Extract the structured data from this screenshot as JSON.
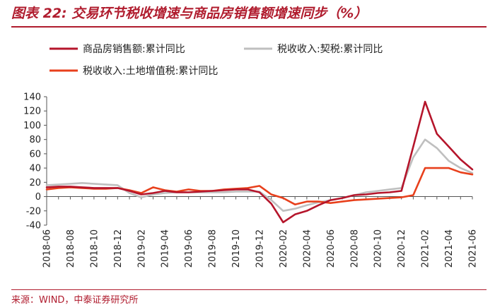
{
  "figure": {
    "title": "图表 22:  交易环节税收增速与商品房销售额增速同步（%）",
    "source": "来源：WIND，中泰证券研究所"
  },
  "colors": {
    "accent": "#b01c2e",
    "series": [
      "#b5152b",
      "#bfbfbf",
      "#e8401c"
    ]
  },
  "chart_data": {
    "type": "line",
    "ylim": [
      -40,
      140
    ],
    "yticks": [
      -40,
      -20,
      0,
      20,
      40,
      60,
      80,
      100,
      120,
      140
    ],
    "x": [
      "2018-06",
      "2018-07",
      "2018-08",
      "2018-09",
      "2018-10",
      "2018-11",
      "2018-12",
      "2019-01",
      "2019-02",
      "2019-03",
      "2019-04",
      "2019-05",
      "2019-06",
      "2019-07",
      "2019-08",
      "2019-09",
      "2019-10",
      "2019-11",
      "2019-12",
      "2020-01",
      "2020-02",
      "2020-03",
      "2020-04",
      "2020-05",
      "2020-06",
      "2020-07",
      "2020-08",
      "2020-09",
      "2020-10",
      "2020-11",
      "2020-12",
      "2021-01",
      "2021-02",
      "2021-03",
      "2021-04",
      "2021-05",
      "2021-06"
    ],
    "xticks": [
      "2018-06",
      "2018-08",
      "2018-10",
      "2018-12",
      "2019-02",
      "2019-04",
      "2019-06",
      "2019-08",
      "2019-10",
      "2019-12",
      "2020-02",
      "2020-04",
      "2020-06",
      "2020-08",
      "2020-10",
      "2020-12",
      "2021-02",
      "2021-04",
      "2021-06"
    ],
    "legend_placement": "top",
    "grid": false,
    "series": [
      {
        "name": "商品房销售额:累计同比",
        "values": [
          13,
          14,
          14,
          13,
          12,
          12,
          12,
          8,
          3,
          5,
          8,
          6,
          6,
          7,
          8,
          9,
          10,
          10,
          6,
          -10,
          -36,
          -25,
          -20,
          -12,
          -5,
          -2,
          2,
          3,
          5,
          6,
          8,
          70,
          133,
          88,
          70,
          52,
          38
        ]
      },
      {
        "name": "税收收入:契税:累计同比",
        "values": [
          16,
          17,
          18,
          19,
          18,
          17,
          16,
          5,
          -1,
          3,
          5,
          6,
          6,
          6,
          6,
          6,
          7,
          7,
          7,
          -5,
          -20,
          -17,
          -12,
          -8,
          -5,
          -2,
          2,
          6,
          8,
          10,
          12,
          55,
          80,
          68,
          50,
          40,
          33
        ]
      },
      {
        "name": "税收收入:土地增值税:累计同比",
        "values": [
          10,
          12,
          13,
          12,
          11,
          11,
          12,
          9,
          5,
          13,
          9,
          7,
          10,
          8,
          8,
          10,
          11,
          12,
          15,
          3,
          -2,
          -11,
          -7,
          -7,
          -9,
          -7,
          -5,
          -4,
          -3,
          -2,
          -1,
          2,
          40,
          40,
          40,
          34,
          31
        ]
      }
    ]
  }
}
